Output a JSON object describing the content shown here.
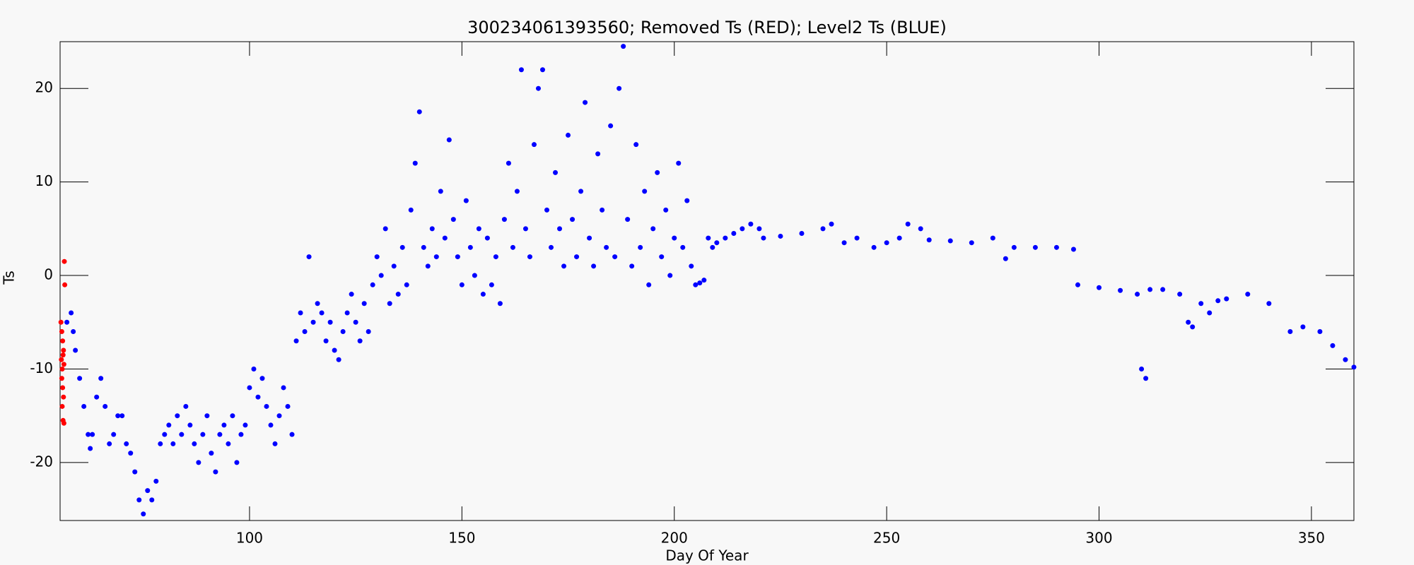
{
  "chart_data": {
    "type": "scatter",
    "title": "300234061393560; Removed Ts (RED); Level2 Ts (BLUE)",
    "x_label": "Day Of Year",
    "y_label": "Ts",
    "xlim": [
      55.4,
      360
    ],
    "ylim": [
      -26.2,
      25
    ],
    "xticks": [
      100,
      150,
      200,
      250,
      300,
      350
    ],
    "yticks": [
      -20,
      -10,
      0,
      10,
      20
    ],
    "series": [
      {
        "color": "#ff0000",
        "x": [
          55.6,
          55.8,
          56.0,
          56.2,
          55.7,
          55.9,
          56.1,
          56.3,
          55.8,
          56.0,
          56.2,
          55.9,
          56.1,
          56.3,
          56.4,
          56.5
        ],
        "values": [
          -5,
          -6,
          -7,
          -8,
          -9,
          -10,
          -8.5,
          -9.5,
          -11,
          -12,
          -13,
          -14,
          -15.5,
          -15.8,
          1.5,
          -1
        ]
      },
      {
        "color": "#0000ff",
        "x": [
          57,
          58,
          58.5,
          59,
          60,
          61,
          62,
          62.5,
          63,
          64,
          65,
          66,
          67,
          68,
          69,
          70,
          71,
          72,
          73,
          74,
          75,
          76,
          77,
          78,
          79,
          80,
          81,
          82,
          83,
          84,
          85,
          86,
          87,
          88,
          89,
          90,
          91,
          92,
          93,
          94,
          95,
          96,
          97,
          98,
          99,
          100,
          101,
          102,
          103,
          104,
          105,
          106,
          107,
          108,
          109,
          110,
          111,
          112,
          113,
          114,
          115,
          116,
          117,
          118,
          119,
          120,
          121,
          122,
          123,
          124,
          125,
          126,
          127,
          128,
          129,
          130,
          131,
          132,
          133,
          134,
          135,
          136,
          137,
          138,
          139,
          140,
          141,
          142,
          143,
          144,
          145,
          146,
          147,
          148,
          149,
          150,
          151,
          152,
          153,
          154,
          155,
          156,
          157,
          158,
          159,
          160,
          161,
          162,
          163,
          164,
          165,
          166,
          167,
          168,
          169,
          170,
          171,
          172,
          173,
          174,
          175,
          176,
          177,
          178,
          179,
          180,
          181,
          182,
          183,
          184,
          185,
          186,
          187,
          188,
          189,
          190,
          191,
          192,
          193,
          194,
          195,
          196,
          197,
          198,
          199,
          200,
          201,
          202,
          203,
          204,
          205,
          206,
          207,
          208,
          209,
          210,
          212,
          214,
          216,
          218,
          220,
          221,
          225,
          230,
          235,
          237,
          240,
          243,
          247,
          250,
          253,
          255,
          258,
          260,
          265,
          270,
          275,
          278,
          280,
          285,
          290,
          294,
          295,
          300,
          305,
          309,
          310,
          311,
          312,
          315,
          319,
          321,
          322,
          324,
          326,
          328,
          330,
          335,
          340,
          345,
          348,
          352,
          355,
          358,
          360
        ],
        "values": [
          -5,
          -4,
          -6,
          -8,
          -11,
          -14,
          -17,
          -18.5,
          -17,
          -13,
          -11,
          -14,
          -18,
          -17,
          -15,
          -15,
          -18,
          -19,
          -21,
          -24,
          -25.5,
          -23,
          -24,
          -22,
          -18,
          -17,
          -16,
          -18,
          -15,
          -17,
          -14,
          -16,
          -18,
          -20,
          -17,
          -15,
          -19,
          -21,
          -17,
          -16,
          -18,
          -15,
          -20,
          -17,
          -16,
          -12,
          -10,
          -13,
          -11,
          -14,
          -16,
          -18,
          -15,
          -12,
          -14,
          -17,
          -7,
          -4,
          -6,
          2,
          -5,
          -3,
          -4,
          -7,
          -5,
          -8,
          -9,
          -6,
          -4,
          -2,
          -5,
          -7,
          -3,
          -6,
          -1,
          2,
          0,
          5,
          -3,
          1,
          -2,
          3,
          -1,
          7,
          12,
          17.5,
          3,
          1,
          5,
          2,
          9,
          4,
          14.5,
          6,
          2,
          -1,
          8,
          3,
          0,
          5,
          -2,
          4,
          -1,
          2,
          -3,
          6,
          12,
          3,
          9,
          22,
          5,
          2,
          14,
          20,
          22,
          7,
          3,
          11,
          5,
          1,
          15,
          6,
          2,
          9,
          18.5,
          4,
          1,
          13,
          7,
          3,
          16,
          2,
          20,
          24.5,
          6,
          1,
          14,
          3,
          9,
          -1,
          5,
          11,
          2,
          7,
          0,
          4,
          12,
          3,
          8,
          1,
          -1,
          -0.8,
          -0.5,
          4,
          3,
          3.5,
          4,
          4.5,
          5,
          5.5,
          5,
          4,
          4.2,
          4.5,
          5,
          5.5,
          3.5,
          4,
          3,
          3.5,
          4,
          5.5,
          5,
          3.8,
          3.7,
          3.5,
          4,
          1.8,
          3,
          3,
          3,
          2.8,
          -1,
          -1.3,
          -1.6,
          -2,
          -10,
          -11,
          -1.5,
          -1.5,
          -2,
          -5,
          -5.5,
          -3,
          -4,
          -2.7,
          -2.5,
          -2,
          -3,
          -6,
          -5.5,
          -6,
          -7.5,
          -9,
          -9.8
        ]
      }
    ]
  }
}
